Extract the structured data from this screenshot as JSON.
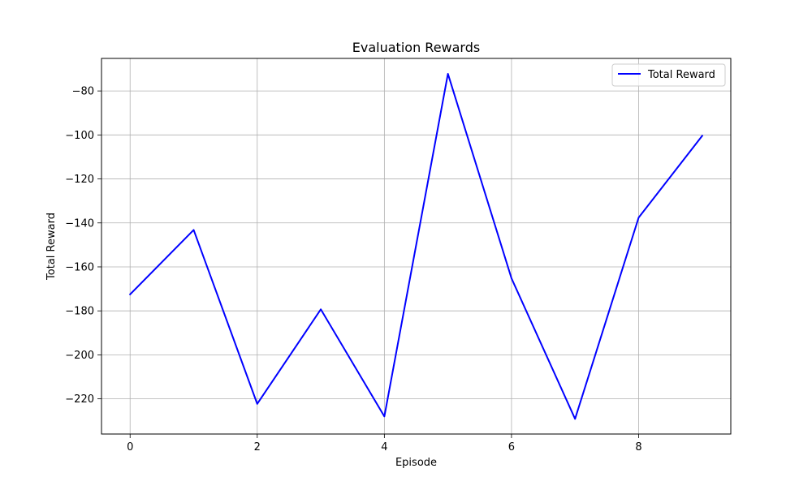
{
  "chart_data": {
    "type": "line",
    "title": "Evaluation Rewards",
    "xlabel": "Episode",
    "ylabel": "Total Reward",
    "x": [
      0,
      1,
      2,
      3,
      4,
      5,
      6,
      7,
      8,
      9
    ],
    "series": [
      {
        "name": "Total Reward",
        "color": "#0000ff",
        "values": [
          -172.5,
          -143.2,
          -222.3,
          -179.3,
          -228.0,
          -72.2,
          -165.2,
          -229.1,
          -137.6,
          -100.4
        ]
      }
    ],
    "xlim": [
      -0.45,
      9.45
    ],
    "ylim": [
      -236.0,
      -65.2
    ],
    "xticks": [
      0,
      2,
      4,
      6,
      8
    ],
    "yticks": [
      -220,
      -200,
      -180,
      -160,
      -140,
      -120,
      -100,
      -80
    ],
    "xtick_labels": [
      "0",
      "2",
      "4",
      "6",
      "8"
    ],
    "ytick_labels": [
      "−220",
      "−200",
      "−180",
      "−160",
      "−140",
      "−120",
      "−100",
      "−80"
    ],
    "grid": true,
    "legend_position": "top-right"
  }
}
